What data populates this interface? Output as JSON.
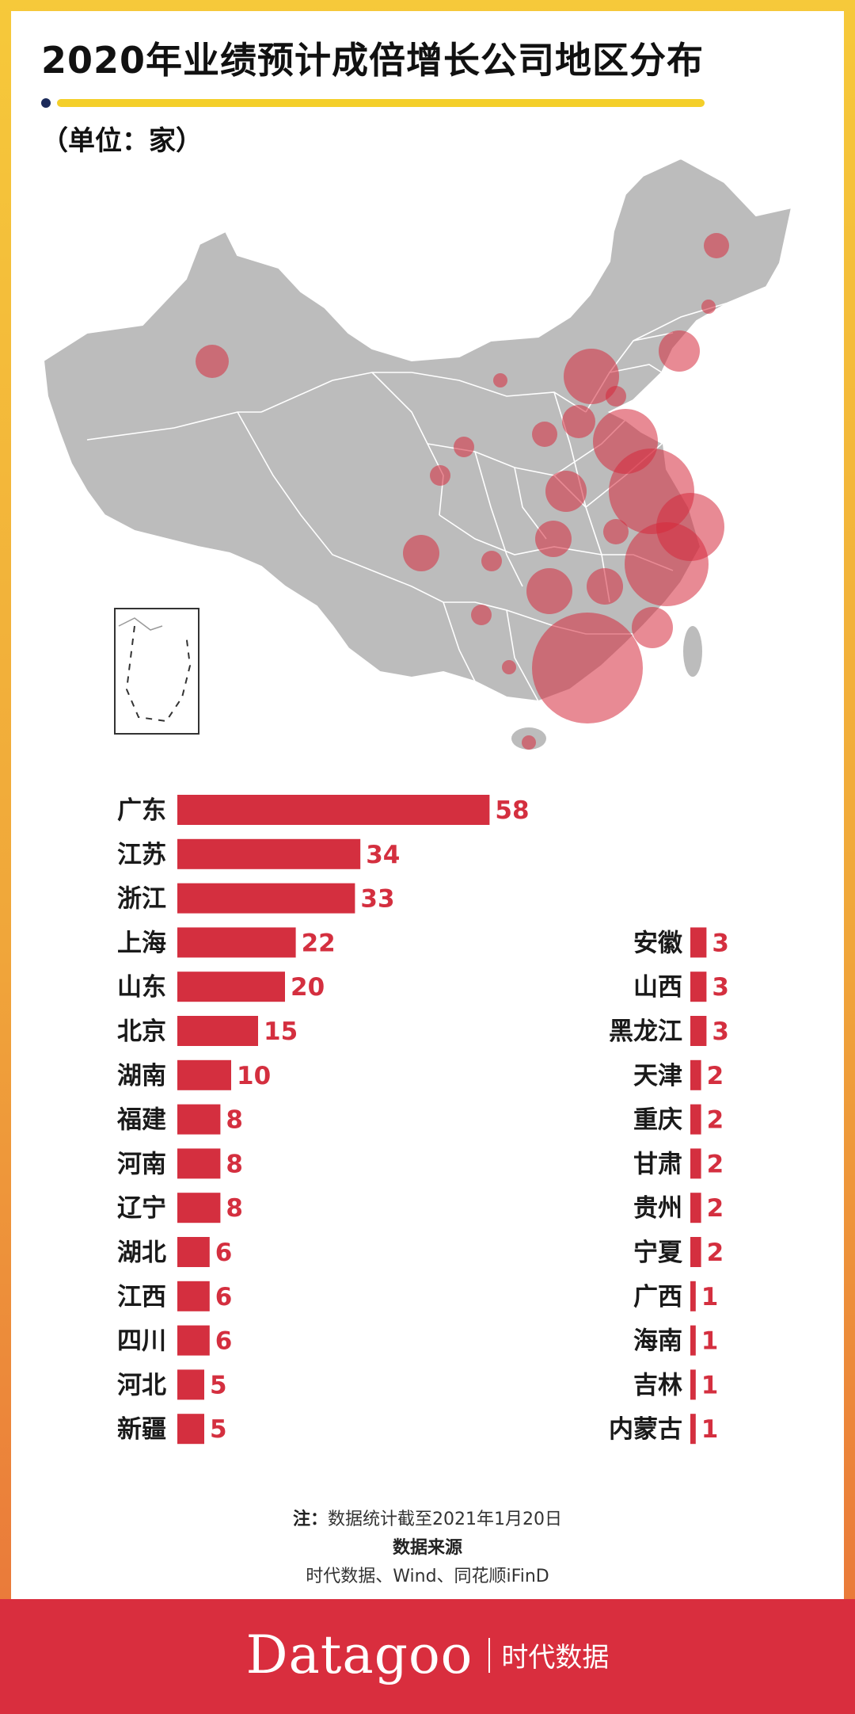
{
  "title": "2020年业绩预计成倍增长公司地区分布",
  "unit": "（单位：家）",
  "colors": {
    "bar": "#d42f3f",
    "label": "#d42f3f",
    "map": "#bcbcbc",
    "bubble": "rgba(214,42,61,0.55)",
    "accent": "#f4cf2a"
  },
  "chart_data": {
    "type": "bar",
    "orientation": "horizontal",
    "unit": "家",
    "categories": [
      "广东",
      "江苏",
      "浙江",
      "上海",
      "山东",
      "北京",
      "湖南",
      "福建",
      "河南",
      "辽宁",
      "湖北",
      "江西",
      "四川",
      "河北",
      "新疆",
      "安徽",
      "山西",
      "黑龙江",
      "天津",
      "重庆",
      "甘肃",
      "贵州",
      "宁夏",
      "广西",
      "海南",
      "吉林",
      "内蒙古"
    ],
    "values": [
      58,
      34,
      33,
      22,
      20,
      15,
      10,
      8,
      8,
      8,
      6,
      6,
      6,
      5,
      5,
      3,
      3,
      3,
      2,
      2,
      2,
      2,
      2,
      1,
      1,
      1,
      1
    ]
  },
  "notes": {
    "note_label": "注：",
    "note_text": "数据统计截至2021年1月20日",
    "source_title": "数据来源",
    "source_text": "时代数据、Wind、同花顺iFinD"
  },
  "footer": {
    "brand": "Datagoo",
    "brand_cn": "时代数据"
  }
}
